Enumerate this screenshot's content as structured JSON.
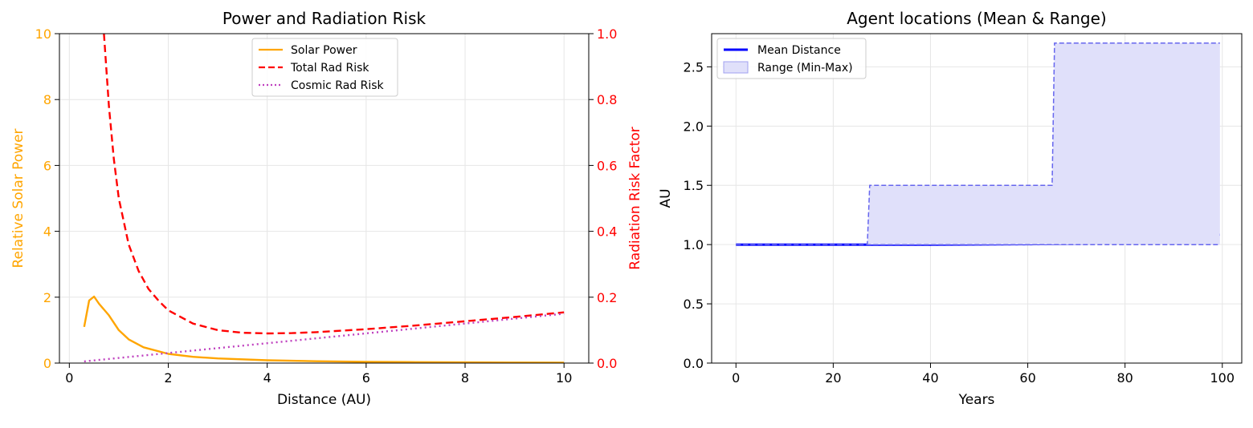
{
  "chart_data": [
    {
      "type": "line",
      "title": "Power and Radiation Risk",
      "xlabel": "Distance (AU)",
      "ylabel": "Relative Solar Power",
      "y2label": "Radiation Risk Factor",
      "xlim": [
        -0.2,
        10.5
      ],
      "ylim": [
        0,
        10
      ],
      "y2lim": [
        0,
        1
      ],
      "xticks": [
        "0",
        "2",
        "4",
        "6",
        "8",
        "10"
      ],
      "yticks": [
        "0",
        "2",
        "4",
        "6",
        "8",
        "10"
      ],
      "y2ticks": [
        "0.0",
        "0.2",
        "0.4",
        "0.6",
        "0.8",
        "1.0"
      ],
      "grid": true,
      "legend_position": "top-center",
      "colors": {
        "left_axis": "#ffa500",
        "right_axis": "#ff0000"
      },
      "series": [
        {
          "name": "Solar Power",
          "axis": "left",
          "color": "#ffa500",
          "style": "solid",
          "x": [
            0.3,
            0.4,
            0.5,
            0.6,
            0.8,
            1.0,
            1.2,
            1.5,
            2.0,
            2.5,
            3.0,
            4.0,
            5.0,
            6.0,
            7.0,
            8.0,
            9.0,
            10.0
          ],
          "y": [
            1.1,
            1.9,
            2.02,
            1.8,
            1.45,
            1.0,
            0.72,
            0.48,
            0.28,
            0.19,
            0.14,
            0.085,
            0.055,
            0.04,
            0.03,
            0.022,
            0.018,
            0.015
          ]
        },
        {
          "name": "Total Rad Risk",
          "axis": "right",
          "color": "#ff0000",
          "style": "dashed",
          "x": [
            0.7,
            0.8,
            0.9,
            1.0,
            1.2,
            1.4,
            1.6,
            1.8,
            2.0,
            2.5,
            3.0,
            3.5,
            4.0,
            4.5,
            5.0,
            6.0,
            7.0,
            8.0,
            9.0,
            10.0
          ],
          "y": [
            1.0,
            0.78,
            0.62,
            0.5,
            0.36,
            0.28,
            0.225,
            0.19,
            0.16,
            0.12,
            0.1,
            0.092,
            0.09,
            0.091,
            0.094,
            0.103,
            0.114,
            0.127,
            0.14,
            0.154
          ]
        },
        {
          "name": "Cosmic Rad Risk",
          "axis": "right",
          "color": "#bf40bf",
          "style": "dotted",
          "x": [
            0.3,
            10.0
          ],
          "y": [
            0.005,
            0.15
          ]
        }
      ]
    },
    {
      "type": "line",
      "title": "Agent locations (Mean & Range)",
      "xlabel": "Years",
      "ylabel": "AU",
      "xlim": [
        -5,
        104
      ],
      "ylim": [
        0,
        2.78
      ],
      "xticks": [
        "0",
        "20",
        "40",
        "60",
        "80",
        "100"
      ],
      "yticks": [
        "0.0",
        "0.5",
        "1.0",
        "1.5",
        "2.0",
        "2.5"
      ],
      "grid": true,
      "legend_position": "top-left",
      "series": [
        {
          "name": "Mean Distance",
          "color": "#0000ff",
          "style": "solid",
          "x": [
            0,
            20,
            40,
            60,
            70,
            75,
            80,
            85,
            90,
            95,
            99.5
          ],
          "y": [
            1.0,
            1.0,
            1.0,
            1.004,
            1.008,
            1.013,
            1.02,
            1.03,
            1.045,
            1.065,
            1.085
          ]
        },
        {
          "name": "Range (Min-Max)",
          "type": "area",
          "color": "#6666ee",
          "fill": "#e0e0fa",
          "x": [
            0,
            27,
            27.5,
            65,
            65.5,
            99.5
          ],
          "min": [
            1.0,
            1.0,
            1.0,
            1.0,
            1.0,
            1.0
          ],
          "max": [
            1.0,
            1.0,
            1.5,
            1.5,
            2.7,
            2.7
          ]
        }
      ]
    }
  ]
}
